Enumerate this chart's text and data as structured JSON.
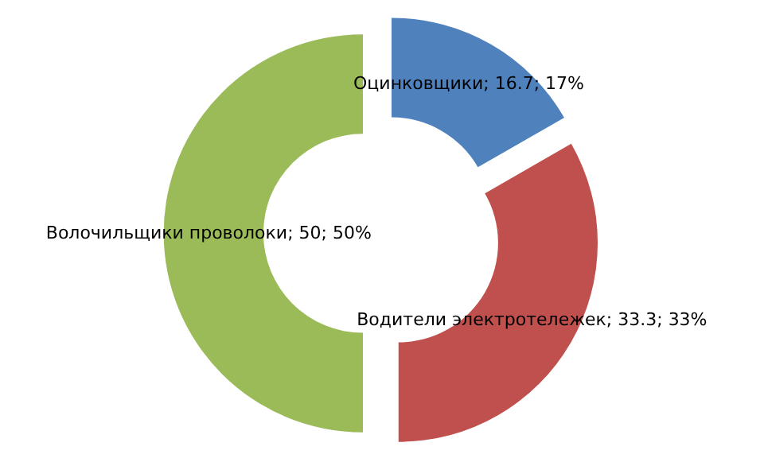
{
  "chart_data": {
    "type": "donut",
    "categories": [
      "Оцинковщики",
      "Водители электротележек",
      "Волочильщики проволоки"
    ],
    "values": [
      16.7,
      33.3,
      50
    ],
    "colors": [
      "#4f81bd",
      "#c0504d",
      "#9bbb59"
    ],
    "value_labels": [
      "16.7; 17%",
      "33.3; 33%",
      "50; 50%"
    ],
    "legend": false
  }
}
